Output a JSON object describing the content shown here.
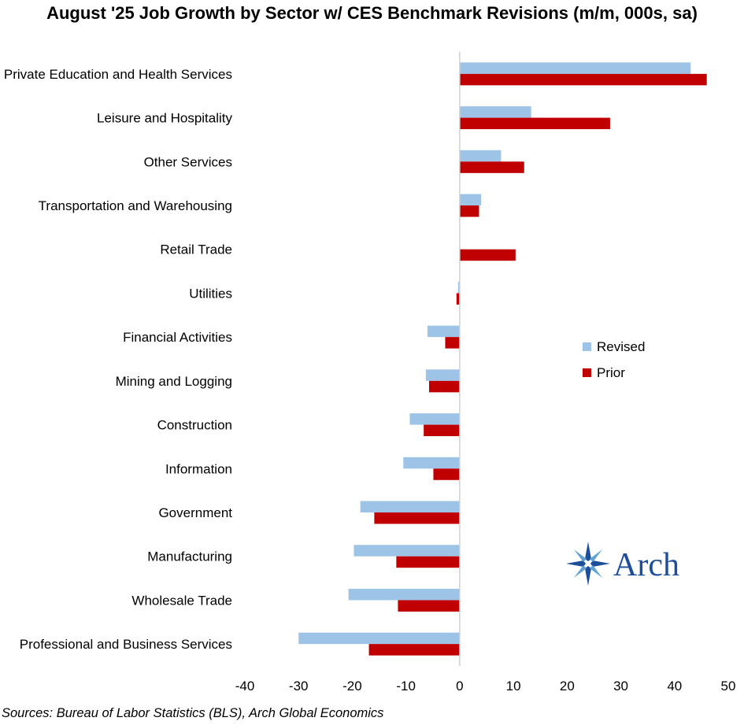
{
  "chart_data": {
    "type": "bar",
    "orientation": "horizontal",
    "title": "August '25 Job Growth by Sector w/ CES Benchmark Revisions (m/m, 000s, sa)",
    "categories": [
      "Private Education and Health Services",
      "Leisure and Hospitality",
      "Other Services",
      "Transportation and Warehousing",
      "Retail Trade",
      "Utilities",
      "Financial Activities",
      "Mining and Logging",
      "Construction",
      "Information",
      "Government",
      "Manufacturing",
      "Wholesale Trade",
      "Professional and Business Services"
    ],
    "series": [
      {
        "name": "Revised",
        "color": "#9dc3e6",
        "values": [
          43,
          13.3,
          7.7,
          4,
          0,
          -0.3,
          -6,
          -6.3,
          -9.3,
          -10.5,
          -18.5,
          -19.7,
          -20.7,
          -30
        ]
      },
      {
        "name": "Prior",
        "color": "#c00000",
        "values": [
          46,
          28,
          12,
          3.6,
          10.4,
          -0.6,
          -2.7,
          -5.7,
          -6.7,
          -4.9,
          -15.9,
          -11.8,
          -11.5,
          -16.9
        ]
      }
    ],
    "xlim": [
      -40,
      50
    ],
    "xticks": [
      -40,
      -30,
      -20,
      -10,
      0,
      10,
      20,
      30,
      40,
      50
    ],
    "xlabel": "",
    "ylabel": "",
    "grid": false,
    "legend_position": "center-right"
  },
  "source": "Sources: Bureau of Labor Statistics (BLS), Arch Global Economics",
  "logo": {
    "text": "Arch",
    "color": "#1d4e9a"
  }
}
